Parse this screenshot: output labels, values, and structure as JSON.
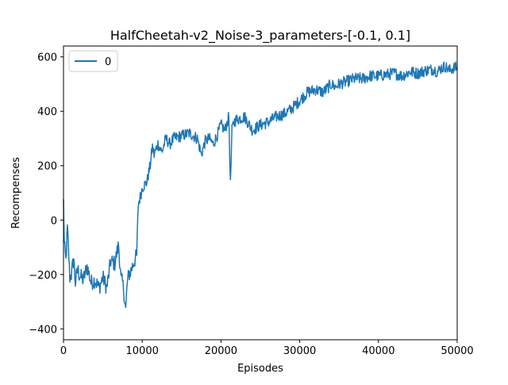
{
  "chart_data": {
    "type": "line",
    "title": "HalfCheetah-v2_Noise-3_parameters-[-0.1, 0.1]",
    "xlabel": "Episodes",
    "ylabel": "Recompenses",
    "xlim": [
      0,
      50000
    ],
    "ylim": [
      -440,
      640
    ],
    "xticks": [
      0,
      10000,
      20000,
      30000,
      40000,
      50000
    ],
    "xtick_labels": [
      "0",
      "10000",
      "20000",
      "30000",
      "40000",
      "50000"
    ],
    "yticks": [
      -400,
      -200,
      0,
      200,
      400,
      600
    ],
    "ytick_labels": [
      "−400",
      "−200",
      "0",
      "200",
      "400",
      "600"
    ],
    "grid": false,
    "legend": {
      "position": "top-left",
      "entries": [
        "0"
      ]
    },
    "colors": {
      "series": "#1f77b4"
    },
    "series": [
      {
        "name": "0",
        "x": [
          0,
          100,
          300,
          500,
          800,
          1000,
          1300,
          1500,
          1800,
          2000,
          2500,
          3000,
          3500,
          4000,
          4500,
          5000,
          5500,
          6000,
          6500,
          7000,
          7300,
          7500,
          7700,
          7900,
          8100,
          8300,
          8500,
          9000,
          9300,
          9500,
          9800,
          10000,
          10300,
          10600,
          11000,
          11300,
          11500,
          12000,
          12500,
          13000,
          13500,
          14000,
          15000,
          16000,
          17000,
          17500,
          18000,
          18500,
          19000,
          19500,
          20000,
          20500,
          21000,
          21200,
          21400,
          21600,
          22000,
          23000,
          24000,
          25000,
          26000,
          27000,
          28000,
          29000,
          30000,
          31000,
          32000,
          33000,
          34000,
          34500,
          35000,
          36000,
          37000,
          38000,
          39000,
          40000,
          41000,
          42000,
          43000,
          44000,
          45000,
          46000,
          47000,
          47500,
          48000,
          48500,
          49000,
          49500,
          50000
        ],
        "y": [
          70,
          -90,
          -150,
          -30,
          -210,
          -200,
          -140,
          -230,
          -180,
          -200,
          -220,
          -170,
          -230,
          -220,
          -250,
          -210,
          -250,
          -150,
          -160,
          -90,
          -220,
          -230,
          -270,
          -330,
          -230,
          -200,
          -190,
          -150,
          -130,
          60,
          90,
          120,
          130,
          140,
          200,
          270,
          240,
          280,
          250,
          300,
          280,
          300,
          310,
          320,
          300,
          240,
          290,
          300,
          280,
          310,
          350,
          330,
          380,
          130,
          330,
          360,
          370,
          380,
          330,
          350,
          360,
          380,
          390,
          410,
          440,
          470,
          480,
          470,
          500,
          490,
          500,
          510,
          520,
          520,
          530,
          530,
          535,
          540,
          530,
          545,
          540,
          550,
          555,
          545,
          560,
          565,
          550,
          560,
          560
        ]
      }
    ]
  }
}
